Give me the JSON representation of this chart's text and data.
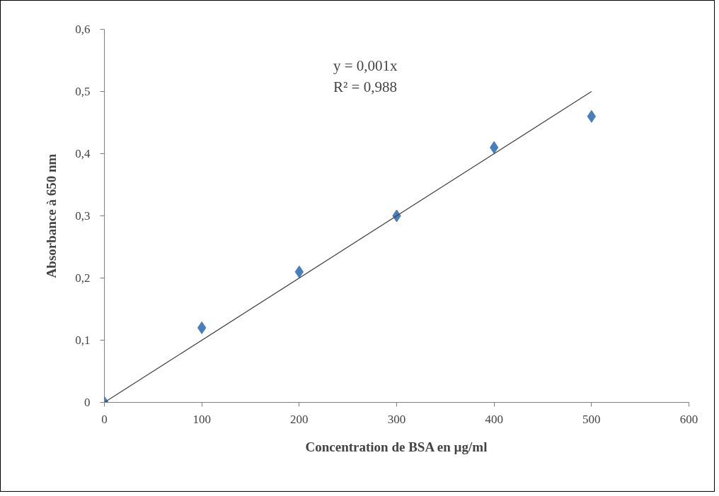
{
  "chart_data": {
    "type": "scatter",
    "xlabel": "Concentration de BSA en µg/ml",
    "ylabel": "Absorbance à 650 nm",
    "x": [
      0,
      100,
      200,
      300,
      400,
      500
    ],
    "series": [
      {
        "color": "#4a7ebb",
        "marker": "diamond",
        "values": [
          0,
          0.12,
          0.21,
          0.3,
          0.41,
          0.46
        ]
      },
      {
        "type": "line",
        "color": "#404040",
        "x": [
          0,
          500
        ],
        "values": [
          0,
          0.5
        ]
      }
    ],
    "annotations": [
      "y = 0,001x\nR² = 0,988"
    ],
    "xlim": [
      0,
      600
    ],
    "xticks": [
      0,
      100,
      200,
      300,
      400,
      500,
      600
    ],
    "ylim": [
      0,
      0.6
    ],
    "yticks": [
      0,
      {
        "value": 0.1,
        "label": "0,1"
      },
      {
        "value": 0.2,
        "label": "0,2"
      },
      {
        "value": 0.3,
        "label": "0,3"
      },
      {
        "value": 0.4,
        "label": "0,4"
      },
      {
        "value": 0.5,
        "label": "0,5"
      },
      {
        "value": 0.6,
        "label": "0,6"
      }
    ],
    "grid": false
  }
}
